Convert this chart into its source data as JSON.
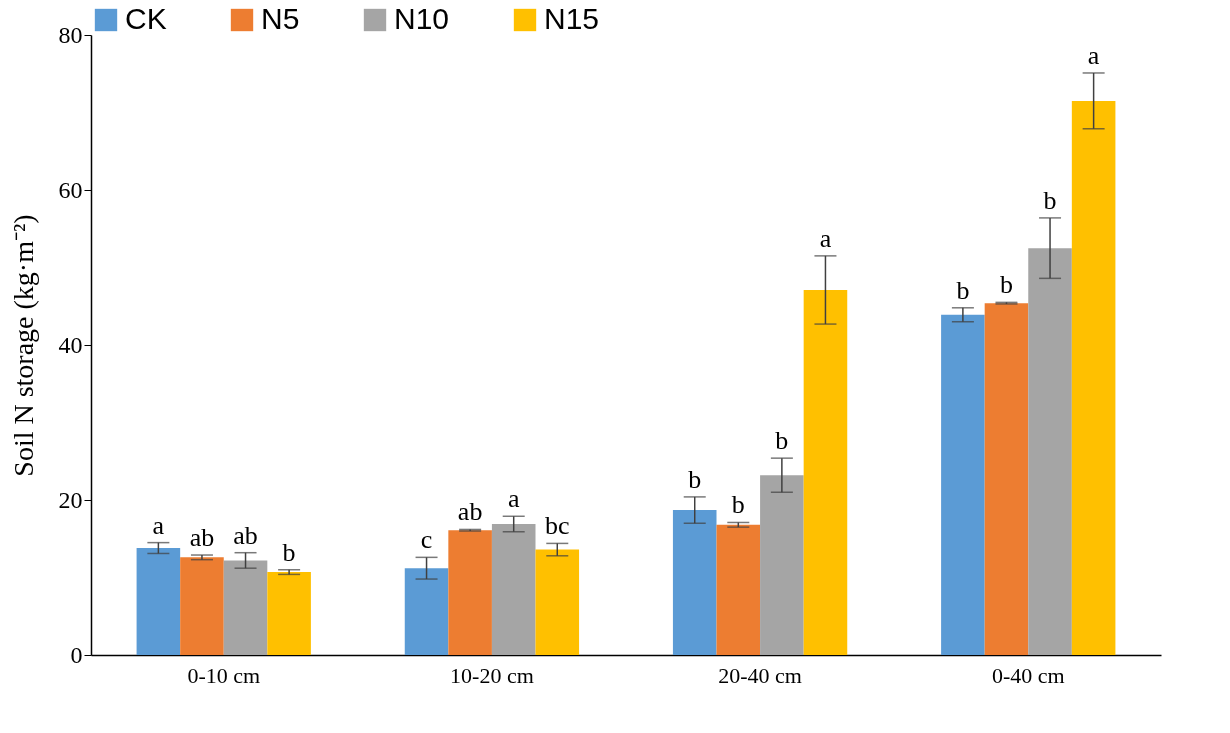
{
  "chart_data": {
    "type": "bar",
    "ylabel": "Soil N storage (kg·m⁻²)",
    "categories": [
      "0-10 cm",
      "10-20 cm",
      "20-40 cm",
      "0-40 cm"
    ],
    "series": [
      {
        "name": "CK",
        "color": "#5b9bd5",
        "values": [
          13.8,
          11.2,
          18.7,
          43.9
        ],
        "errors": [
          0.7,
          1.4,
          1.7,
          0.9
        ],
        "value_labels": [
          "a",
          "c",
          "b",
          "b"
        ]
      },
      {
        "name": "N5",
        "color": "#ed7d31",
        "values": [
          12.6,
          16.1,
          16.8,
          45.4
        ],
        "errors": [
          0.3,
          0.1,
          0.3,
          0.1
        ],
        "value_labels": [
          "ab",
          "ab",
          "b",
          "b"
        ]
      },
      {
        "name": "N10",
        "color": "#a5a5a5",
        "values": [
          12.2,
          16.9,
          23.2,
          52.5
        ],
        "errors": [
          1.0,
          1.0,
          2.2,
          3.9
        ],
        "value_labels": [
          "ab",
          "a",
          "b",
          "b"
        ]
      },
      {
        "name": "N15",
        "color": "#ffc000",
        "values": [
          10.7,
          13.6,
          47.1,
          71.5
        ],
        "errors": [
          0.3,
          0.8,
          4.4,
          3.6
        ],
        "value_labels": [
          "b",
          "bc",
          "a",
          "a"
        ]
      }
    ],
    "ylim": [
      0,
      80
    ],
    "yticks": [
      0,
      20,
      40,
      60,
      80
    ],
    "grid": false,
    "legend": "top"
  }
}
